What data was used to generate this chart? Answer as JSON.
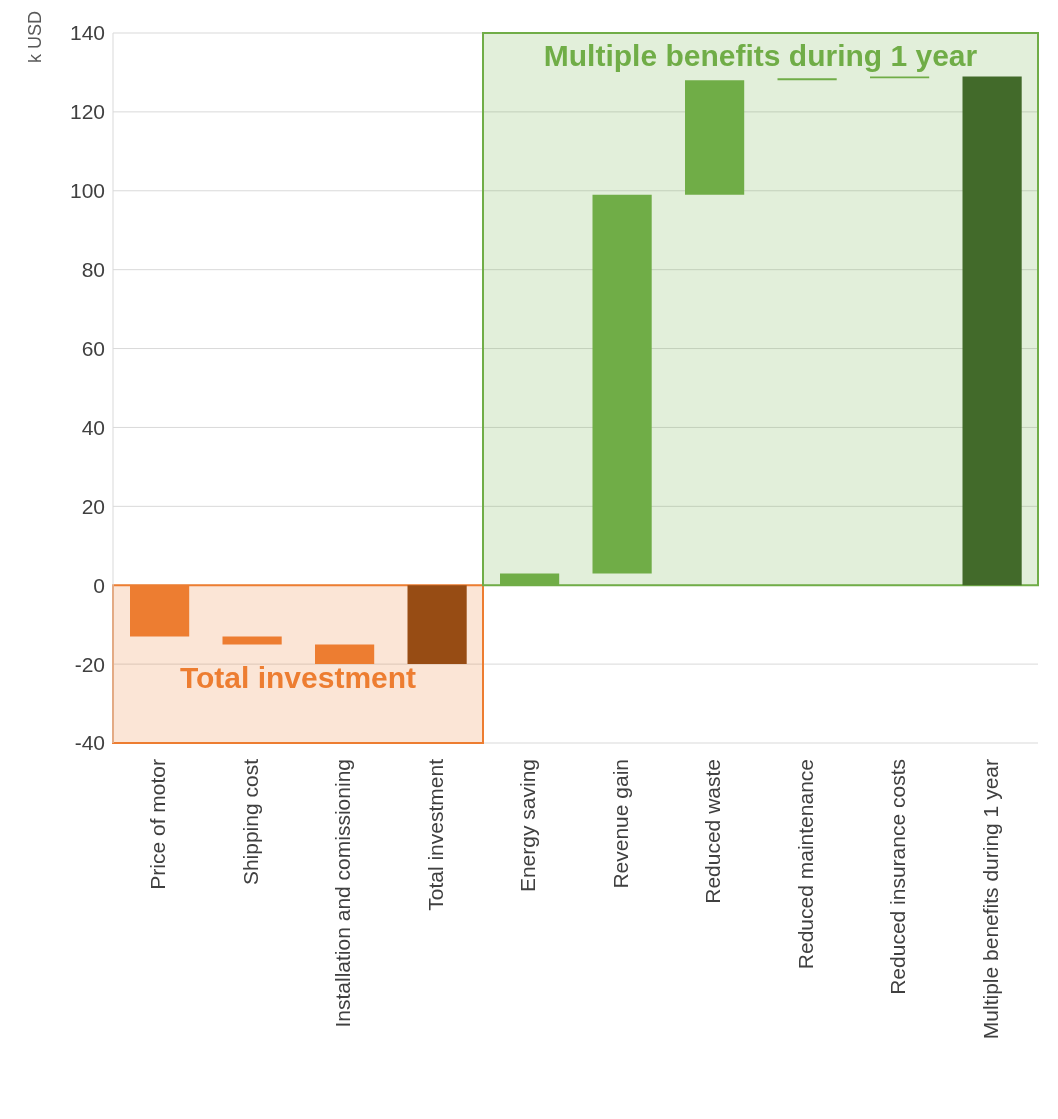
{
  "chart_data": {
    "type": "bar",
    "ylabel": "k USD",
    "categories": [
      "Price of motor",
      "Shipping cost",
      "Installation and comissioning",
      "Total investment",
      "Energy saving",
      "Revenue gain",
      "Reduced waste",
      "Reduced maintenance",
      "Reduced insurance costs",
      "Multiple benefits during 1 year"
    ],
    "values": [
      -13,
      -2,
      -5,
      -20,
      3,
      96,
      29,
      0.5,
      0.5,
      129
    ],
    "base": [
      0,
      -13,
      -15,
      0,
      0,
      3,
      99,
      128,
      128.5,
      0
    ],
    "colors": [
      "#ed7d31",
      "#ed7d31",
      "#ed7d31",
      "#974c14",
      "#70ad47",
      "#70ad47",
      "#70ad47",
      "#70ad47",
      "#70ad47",
      "#426a2a"
    ],
    "ylim": [
      -40,
      140
    ],
    "yticks": [
      -40,
      -20,
      0,
      20,
      40,
      60,
      80,
      100,
      120,
      140
    ],
    "grid": "y",
    "legend": false,
    "annotations": [
      "Total investment",
      "Multiple benefits during 1 year"
    ],
    "bands": [
      {
        "axis": "x",
        "from": "Price of motor",
        "to": "Total investment",
        "color": "#ed7d31"
      },
      {
        "axis": "x",
        "from": "Energy saving",
        "to": "Multiple benefits during 1 year",
        "color": "#70ad47"
      }
    ]
  }
}
